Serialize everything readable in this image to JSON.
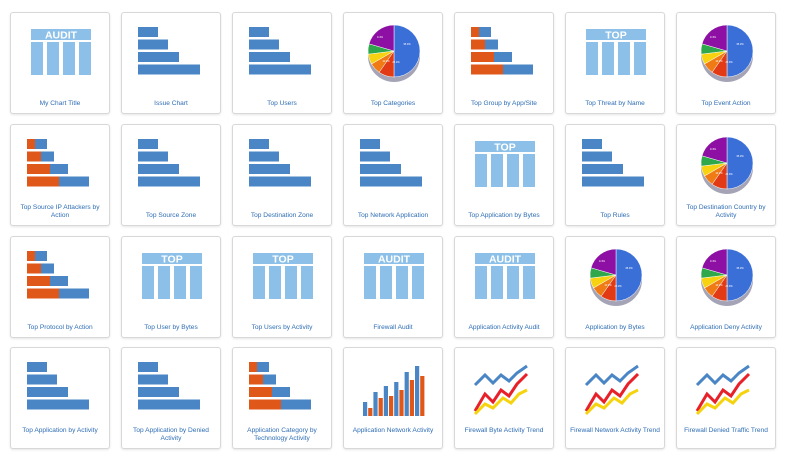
{
  "colors": {
    "blue": "#4a86c5",
    "light_blue": "#8cc0e8",
    "orange": "#e0571a",
    "red": "#e8202a",
    "yellow": "#f5d40f",
    "caption": "#2e6db4",
    "pie_purple": "#8e0fa3",
    "pie_blue": "#3a6fd8",
    "pie_orange": "#f07a14",
    "pie_red": "#e23a14",
    "pie_yellow": "#f7d211",
    "pie_green": "#2ea84a"
  },
  "pie_labels": [
    "35.0%",
    "22.0%",
    "10.0%",
    "9.4%"
  ],
  "banners": {
    "audit": "AUDIT",
    "top": "TOP"
  },
  "reports": [
    {
      "title": "My Chart Title",
      "icon": "audit"
    },
    {
      "title": "Issue Chart",
      "icon": "hbar"
    },
    {
      "title": "Top Users",
      "icon": "hbar"
    },
    {
      "title": "Top Categories",
      "icon": "pie"
    },
    {
      "title": "Top Group by App/Site",
      "icon": "stackbar"
    },
    {
      "title": "Top Threat by Name",
      "icon": "top"
    },
    {
      "title": "Top Event Action",
      "icon": "pie"
    },
    {
      "title": "Top Source IP Attackers by Action",
      "icon": "stackbar"
    },
    {
      "title": "Top Source Zone",
      "icon": "hbar"
    },
    {
      "title": "Top Destination Zone",
      "icon": "hbar"
    },
    {
      "title": "Top Network Application",
      "icon": "hbar"
    },
    {
      "title": "Top Application by Bytes",
      "icon": "top"
    },
    {
      "title": "Top Rules",
      "icon": "hbar"
    },
    {
      "title": "Top Destination Country by Activity",
      "icon": "pie"
    },
    {
      "title": "Top Protocol by Action",
      "icon": "stackbar"
    },
    {
      "title": "Top User by Bytes",
      "icon": "top"
    },
    {
      "title": "Top Users by Activity",
      "icon": "top"
    },
    {
      "title": "Firewall Audit",
      "icon": "audit"
    },
    {
      "title": "Application Activity Audit",
      "icon": "audit"
    },
    {
      "title": "Application by Bytes",
      "icon": "pie"
    },
    {
      "title": "Application Deny Activity",
      "icon": "pie"
    },
    {
      "title": "Top Application by Activity",
      "icon": "hbar"
    },
    {
      "title": "Top Application by Denied Activity",
      "icon": "hbar"
    },
    {
      "title": "Application Category by Technology Activity",
      "icon": "stackbar"
    },
    {
      "title": "Application Network Activity",
      "icon": "vbar"
    },
    {
      "title": "Firewall Byte Activity Trend",
      "icon": "trend"
    },
    {
      "title": "Firewall Network Activity Trend",
      "icon": "trend"
    },
    {
      "title": "Firewall Denied Traffic Trend",
      "icon": "trend"
    }
  ]
}
